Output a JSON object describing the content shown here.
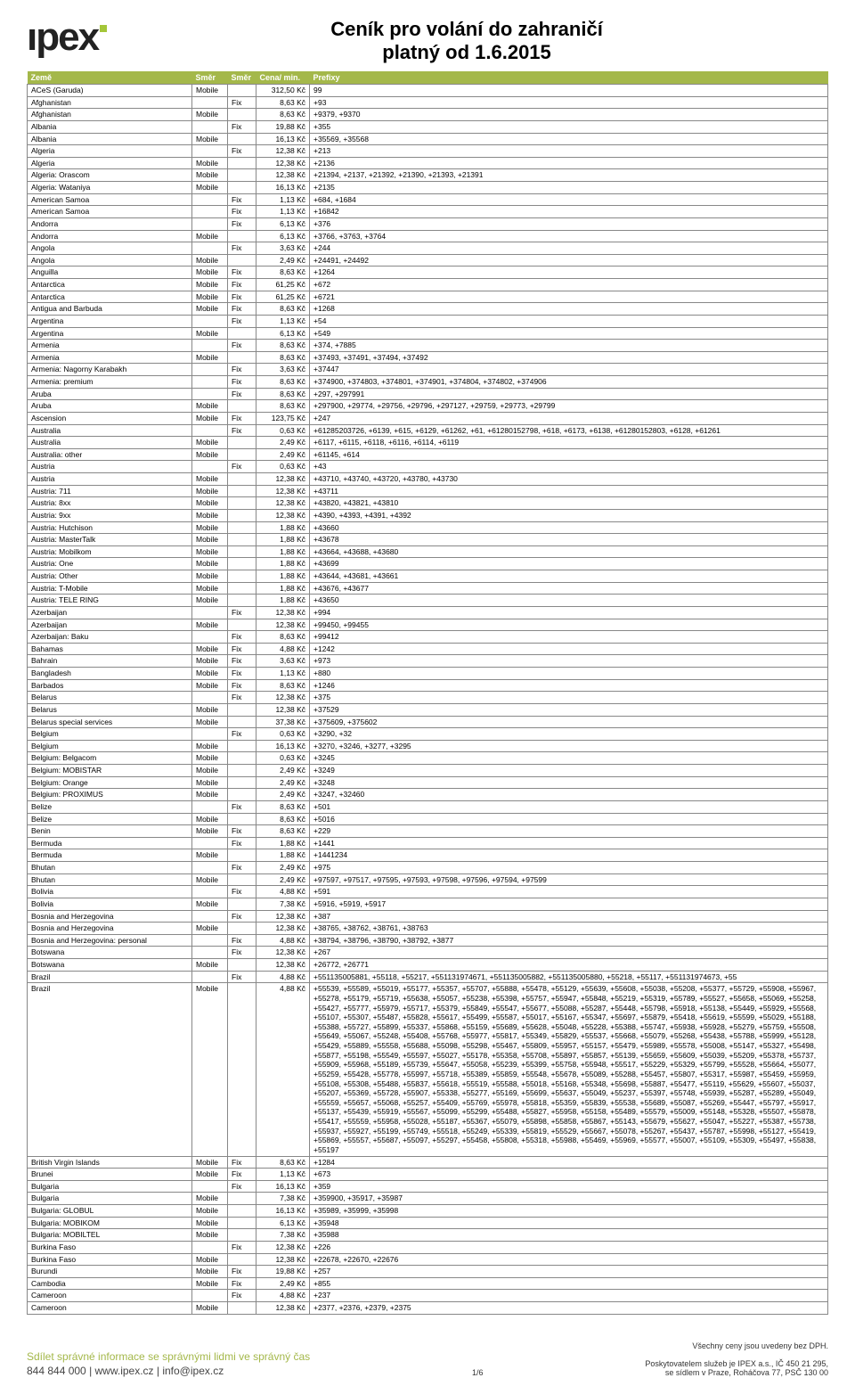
{
  "header": {
    "logo_text": "ıpex",
    "title_line1": "Ceník pro volání do zahraničí",
    "title_line2": "platný od 1.6.2015"
  },
  "table": {
    "columns": [
      "Země",
      "Směr",
      "Směr",
      "Cena/ min.",
      "Prefixy"
    ],
    "header_bg": "#a4b84a",
    "header_fg": "#ffffff",
    "border_color": "#888888",
    "rows": [
      [
        "ACeS (Garuda)",
        "Mobile",
        "",
        "312,50 Kč",
        "99"
      ],
      [
        "Afghanistan",
        "",
        "Fix",
        "8,63 Kč",
        "+93"
      ],
      [
        "Afghanistan",
        "Mobile",
        "",
        "8,63 Kč",
        "+9379, +9370"
      ],
      [
        "Albania",
        "",
        "Fix",
        "19,88 Kč",
        "+355"
      ],
      [
        "Albania",
        "Mobile",
        "",
        "16,13 Kč",
        "+35569, +35568"
      ],
      [
        "Algeria",
        "",
        "Fix",
        "12,38 Kč",
        "+213"
      ],
      [
        "Algeria",
        "Mobile",
        "",
        "12,38 Kč",
        "+2136"
      ],
      [
        "Algeria: Orascom",
        "Mobile",
        "",
        "12,38 Kč",
        "+21394, +2137, +21392, +21390, +21393, +21391"
      ],
      [
        "Algeria: Wataniya",
        "Mobile",
        "",
        "16,13 Kč",
        "+2135"
      ],
      [
        "American Samoa",
        "",
        "Fix",
        "1,13 Kč",
        "+684, +1684"
      ],
      [
        "American Samoa",
        "",
        "Fix",
        "1,13 Kč",
        "+16842"
      ],
      [
        "Andorra",
        "",
        "Fix",
        "6,13 Kč",
        "+376"
      ],
      [
        "Andorra",
        "Mobile",
        "",
        "6,13 Kč",
        "+3766, +3763, +3764"
      ],
      [
        "Angola",
        "",
        "Fix",
        "3,63 Kč",
        "+244"
      ],
      [
        "Angola",
        "Mobile",
        "",
        "2,49 Kč",
        "+24491, +24492"
      ],
      [
        "Anguilla",
        "Mobile",
        "Fix",
        "8,63 Kč",
        "+1264"
      ],
      [
        "Antarctica",
        "Mobile",
        "Fix",
        "61,25 Kč",
        "+672"
      ],
      [
        "Antarctica",
        "Mobile",
        "Fix",
        "61,25 Kč",
        "+6721"
      ],
      [
        "Antigua and Barbuda",
        "Mobile",
        "Fix",
        "8,63 Kč",
        "+1268"
      ],
      [
        "Argentina",
        "",
        "Fix",
        "1,13 Kč",
        "+54"
      ],
      [
        "Argentina",
        "Mobile",
        "",
        "6,13 Kč",
        "+549"
      ],
      [
        "Armenia",
        "",
        "Fix",
        "8,63 Kč",
        "+374, +7885"
      ],
      [
        "Armenia",
        "Mobile",
        "",
        "8,63 Kč",
        "+37493, +37491, +37494, +37492"
      ],
      [
        "Armenia: Nagorny Karabakh",
        "",
        "Fix",
        "3,63 Kč",
        "+37447"
      ],
      [
        "Armenia: premium",
        "",
        "Fix",
        "8,63 Kč",
        "+374900, +374803, +374801, +374901, +374804, +374802, +374906"
      ],
      [
        "Aruba",
        "",
        "Fix",
        "8,63 Kč",
        "+297, +297991"
      ],
      [
        "Aruba",
        "Mobile",
        "",
        "8,63 Kč",
        "+297900, +29774, +29756, +29796, +297127, +29759, +29773, +29799"
      ],
      [
        "Ascension",
        "Mobile",
        "Fix",
        "123,75 Kč",
        "+247"
      ],
      [
        "Australia",
        "",
        "Fix",
        "0,63 Kč",
        "+61285203726, +6139, +615, +6129, +61262, +61, +61280152798, +618, +6173, +6138, +61280152803, +6128, +61261"
      ],
      [
        "Australia",
        "Mobile",
        "",
        "2,49 Kč",
        "+6117, +6115, +6118, +6116, +6114, +6119"
      ],
      [
        "Australia: other",
        "Mobile",
        "",
        "2,49 Kč",
        "+61145, +614"
      ],
      [
        "Austria",
        "",
        "Fix",
        "0,63 Kč",
        "+43"
      ],
      [
        "Austria",
        "Mobile",
        "",
        "12,38 Kč",
        "+43710, +43740, +43720, +43780, +43730"
      ],
      [
        "Austria: 711",
        "Mobile",
        "",
        "12,38 Kč",
        "+43711"
      ],
      [
        "Austria: 8xx",
        "Mobile",
        "",
        "12,38 Kč",
        "+43820, +43821, +43810"
      ],
      [
        "Austria: 9xx",
        "Mobile",
        "",
        "12,38 Kč",
        "+4390, +4393, +4391, +4392"
      ],
      [
        "Austria: Hutchison",
        "Mobile",
        "",
        "1,88 Kč",
        "+43660"
      ],
      [
        "Austria: MasterTalk",
        "Mobile",
        "",
        "1,88 Kč",
        "+43678"
      ],
      [
        "Austria: Mobilkom",
        "Mobile",
        "",
        "1,88 Kč",
        "+43664, +43688, +43680"
      ],
      [
        "Austria: One",
        "Mobile",
        "",
        "1,88 Kč",
        "+43699"
      ],
      [
        "Austria: Other",
        "Mobile",
        "",
        "1,88 Kč",
        "+43644, +43681, +43661"
      ],
      [
        "Austria: T-Mobile",
        "Mobile",
        "",
        "1,88 Kč",
        "+43676, +43677"
      ],
      [
        "Austria: TELE RING",
        "Mobile",
        "",
        "1,88 Kč",
        "+43650"
      ],
      [
        "Azerbaijan",
        "",
        "Fix",
        "12,38 Kč",
        "+994"
      ],
      [
        "Azerbaijan",
        "Mobile",
        "",
        "12,38 Kč",
        "+99450, +99455"
      ],
      [
        "Azerbaijan: Baku",
        "",
        "Fix",
        "8,63 Kč",
        "+99412"
      ],
      [
        "Bahamas",
        "Mobile",
        "Fix",
        "4,88 Kč",
        "+1242"
      ],
      [
        "Bahrain",
        "Mobile",
        "Fix",
        "3,63 Kč",
        "+973"
      ],
      [
        "Bangladesh",
        "Mobile",
        "Fix",
        "1,13 Kč",
        "+880"
      ],
      [
        "Barbados",
        "Mobile",
        "Fix",
        "8,63 Kč",
        "+1246"
      ],
      [
        "Belarus",
        "",
        "Fix",
        "12,38 Kč",
        "+375"
      ],
      [
        "Belarus",
        "Mobile",
        "",
        "12,38 Kč",
        "+37529"
      ],
      [
        "Belarus special services",
        "Mobile",
        "",
        "37,38 Kč",
        "+375609, +375602"
      ],
      [
        "Belgium",
        "",
        "Fix",
        "0,63 Kč",
        "+3290, +32"
      ],
      [
        "Belgium",
        "Mobile",
        "",
        "16,13 Kč",
        "+3270, +3246, +3277, +3295"
      ],
      [
        "Belgium: Belgacom",
        "Mobile",
        "",
        "0,63 Kč",
        "+3245"
      ],
      [
        "Belgium: MOBISTAR",
        "Mobile",
        "",
        "2,49 Kč",
        "+3249"
      ],
      [
        "Belgium: Orange",
        "Mobile",
        "",
        "2,49 Kč",
        "+3248"
      ],
      [
        "Belgium: PROXIMUS",
        "Mobile",
        "",
        "2,49 Kč",
        "+3247, +32460"
      ],
      [
        "Belize",
        "",
        "Fix",
        "8,63 Kč",
        "+501"
      ],
      [
        "Belize",
        "Mobile",
        "",
        "8,63 Kč",
        "+5016"
      ],
      [
        "Benin",
        "Mobile",
        "Fix",
        "8,63 Kč",
        "+229"
      ],
      [
        "Bermuda",
        "",
        "Fix",
        "1,88 Kč",
        "+1441"
      ],
      [
        "Bermuda",
        "Mobile",
        "",
        "1,88 Kč",
        "+1441234"
      ],
      [
        "Bhutan",
        "",
        "Fix",
        "2,49 Kč",
        "+975"
      ],
      [
        "Bhutan",
        "Mobile",
        "",
        "2,49 Kč",
        "+97597, +97517, +97595, +97593, +97598, +97596, +97594, +97599"
      ],
      [
        "Bolivia",
        "",
        "Fix",
        "4,88 Kč",
        "+591"
      ],
      [
        "Bolivia",
        "Mobile",
        "",
        "7,38 Kč",
        "+5916, +5919, +5917"
      ],
      [
        "Bosnia and Herzegovina",
        "",
        "Fix",
        "12,38 Kč",
        "+387"
      ],
      [
        "Bosnia and Herzegovina",
        "Mobile",
        "",
        "12,38 Kč",
        "+38765, +38762, +38761, +38763"
      ],
      [
        "Bosnia and Herzegovina: personal",
        "",
        "Fix",
        "4,88 Kč",
        "+38794, +38796, +38790, +38792, +3877"
      ],
      [
        "Botswana",
        "",
        "Fix",
        "12,38 Kč",
        "+267"
      ],
      [
        "Botswana",
        "Mobile",
        "",
        "12,38 Kč",
        "+26772, +26771"
      ],
      [
        "Brazil",
        "",
        "Fix",
        "4,88 Kč",
        "+551135005881, +55118, +55217, +551131974671, +551135005882, +551135005880, +55218, +55117, +551131974673, +55"
      ],
      [
        "Brazil",
        "Mobile",
        "",
        "4,88 Kč",
        "+55539, +55589, +55019, +55177, +55357, +55707, +55888, +55478, +55129, +55639, +55608, +55038, +55208, +55377, +55729, +55908, +55967, +55278, +55179, +55719, +55638, +55057, +55238, +55398, +55757, +55947, +55848, +55219, +55319, +55789, +55527, +55658, +55069, +55258, +55427, +55777, +55979, +55717, +55379, +55849, +55547, +55677, +55088, +55287, +55448, +55798, +55918, +55138, +55449, +55929, +55568, +55107, +55307, +55487, +55828, +55617, +55499, +55587, +55017, +55167, +55347, +55697, +55879, +55418, +55619, +55599, +55029, +55188, +55388, +55727, +55899, +55337, +55868, +55159, +55689, +55628, +55048, +55228, +55388, +55747, +55938, +55928, +55279, +55759, +55508, +55649, +55067, +55248, +55408, +55768, +55977, +55817, +55349, +55829, +55537, +55668, +55079, +55268, +55438, +55788, +55999, +55128, +55429, +55889, +55558, +55688, +55098, +55298, +55467, +55809, +55957, +55157, +55479, +55989, +55578, +55008, +55147, +55327, +55498, +55877, +55198, +55549, +55597, +55027, +55178, +55358, +55708, +55897, +55857, +55139, +55659, +55609, +55039, +55209, +55378, +55737, +55909, +55968, +55189, +55739, +55647, +55058, +55239, +55399, +55758, +55948, +55517, +55229, +55329, +55799, +55528, +55664, +55077, +55259, +55428, +55778, +55997, +55718, +55389, +55859, +55548, +55678, +55089, +55288, +55457, +55807, +55317, +55987, +55459, +55959, +55108, +55308, +55488, +55837, +55618, +55519, +55588, +55018, +55168, +55348, +55698, +55887, +55477, +55119, +55629, +55607, +55037, +55207, +55369, +55728, +55907, +55338, +55277, +55169, +55699, +55637, +55049, +55237, +55397, +55748, +55939, +55287, +55289, +55049, +55559, +55657, +55068, +55257, +55409, +55769, +55978, +55818, +55359, +55839, +55538, +55689, +55087, +55269, +55447, +55797, +55917, +55137, +55439, +55919, +55567, +55099, +55299, +55488, +55827, +55958, +55158, +55489, +55579, +55009, +55148, +55328, +55507, +55878, +55417, +55559, +55958, +55028, +55187, +55367, +55079, +55898, +55858, +55867, +55143, +55679, +55627, +55047, +55227, +55387, +55738, +55937, +55927, +55199, +55749, +55518, +55249, +55339, +55819, +55529, +55667, +55078, +55267, +55437, +55787, +55998, +55127, +55419, +55869, +55557, +55687, +55097, +55297, +55458, +55808, +55318, +55988, +55469, +55969, +55577, +55007, +55109, +55309, +55497, +55838, +55197"
      ],
      [
        "British Virgin Islands",
        "Mobile",
        "Fix",
        "8,63 Kč",
        "+1284"
      ],
      [
        "Brunei",
        "Mobile",
        "Fix",
        "1,13 Kč",
        "+673"
      ],
      [
        "Bulgaria",
        "",
        "Fix",
        "16,13 Kč",
        "+359"
      ],
      [
        "Bulgaria",
        "Mobile",
        "",
        "7,38 Kč",
        "+359900, +35917, +35987"
      ],
      [
        "Bulgaria: GLOBUL",
        "Mobile",
        "",
        "16,13 Kč",
        "+35989, +35999, +35998"
      ],
      [
        "Bulgaria: MOBIKOM",
        "Mobile",
        "",
        "6,13 Kč",
        "+35948"
      ],
      [
        "Bulgaria: MOBILTEL",
        "Mobile",
        "",
        "7,38 Kč",
        "+35988"
      ],
      [
        "Burkina Faso",
        "",
        "Fix",
        "12,38 Kč",
        "+226"
      ],
      [
        "Burkina Faso",
        "Mobile",
        "",
        "12,38 Kč",
        "+22678, +22670, +22676"
      ],
      [
        "Burundi",
        "Mobile",
        "Fix",
        "19,88 Kč",
        "+257"
      ],
      [
        "Cambodia",
        "Mobile",
        "Fix",
        "2,49 Kč",
        "+855"
      ],
      [
        "Cameroon",
        "",
        "Fix",
        "4,88 Kč",
        "+237"
      ],
      [
        "Cameroon",
        "Mobile",
        "",
        "12,38 Kč",
        "+2377, +2376, +2379, +2375"
      ]
    ]
  },
  "footer": {
    "slogan": "Sdílet správné informace se správnými lidmi ve správný čas",
    "contact": "844 844 000  |  www.ipex.cz  |  info@ipex.cz",
    "page": "1/6",
    "right_line1": "Všechny ceny jsou uvedeny bez DPH.",
    "right_line2": "Poskytovatelem služeb je IPEX a.s., IČ 450 21 295,",
    "right_line3": "se sídlem v Praze, Roháčova 77, PSČ 130 00"
  }
}
